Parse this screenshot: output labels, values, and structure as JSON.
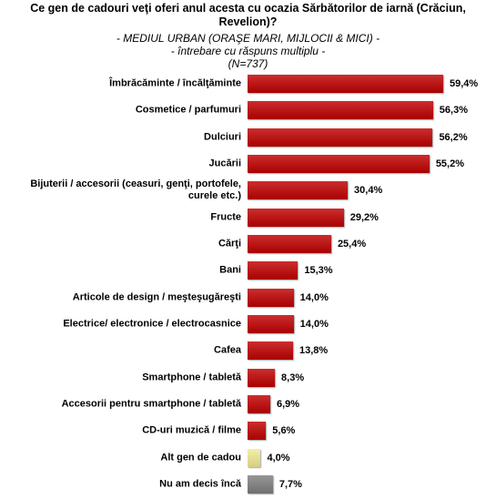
{
  "chart_data": {
    "type": "bar",
    "orientation": "horizontal",
    "title": "Ce gen de cadouri veţi oferi anul acesta cu ocazia Sărbătorilor de iarnă (Crăciun, Revelion)?",
    "subtitles": [
      "- MEDIUL URBAN (ORAŞE MARI, MIJLOCII & MICI) -",
      "- întrebare cu răspuns multiplu -",
      "(N=737)"
    ],
    "categories": [
      "Îmbrăcăminte / încălţăminte",
      "Cosmetice / parfumuri",
      "Dulciuri",
      "Jucării",
      "Bijuterii / accesorii (ceasuri, genţi, portofele, curele etc.)",
      "Fructe",
      "Cărţi",
      "Bani",
      "Articole de design / meşteşugăreşti",
      "Electrice/ electronice / electrocasnice",
      "Cafea",
      "Smartphone / tabletă",
      "Accesorii pentru smartphone / tabletă",
      "CD-uri muzică / filme",
      "Alt gen de cadou",
      "Nu am decis încă"
    ],
    "values": [
      59.4,
      56.3,
      56.2,
      55.2,
      30.4,
      29.2,
      25.4,
      15.3,
      14.0,
      14.0,
      13.8,
      8.3,
      6.9,
      5.6,
      4.0,
      7.7
    ],
    "value_labels": [
      "59,4%",
      "56,3%",
      "56,2%",
      "55,2%",
      "30,4%",
      "29,2%",
      "25,4%",
      "15,3%",
      "14,0%",
      "14,0%",
      "13,8%",
      "8,3%",
      "6,9%",
      "5,6%",
      "4,0%",
      "7,7%"
    ],
    "colors": [
      "#c00000",
      "#c00000",
      "#c00000",
      "#c00000",
      "#c00000",
      "#c00000",
      "#c00000",
      "#c00000",
      "#c00000",
      "#c00000",
      "#c00000",
      "#c00000",
      "#c00000",
      "#c00000",
      "#f2eb95",
      "#7f7f7f"
    ]
  }
}
